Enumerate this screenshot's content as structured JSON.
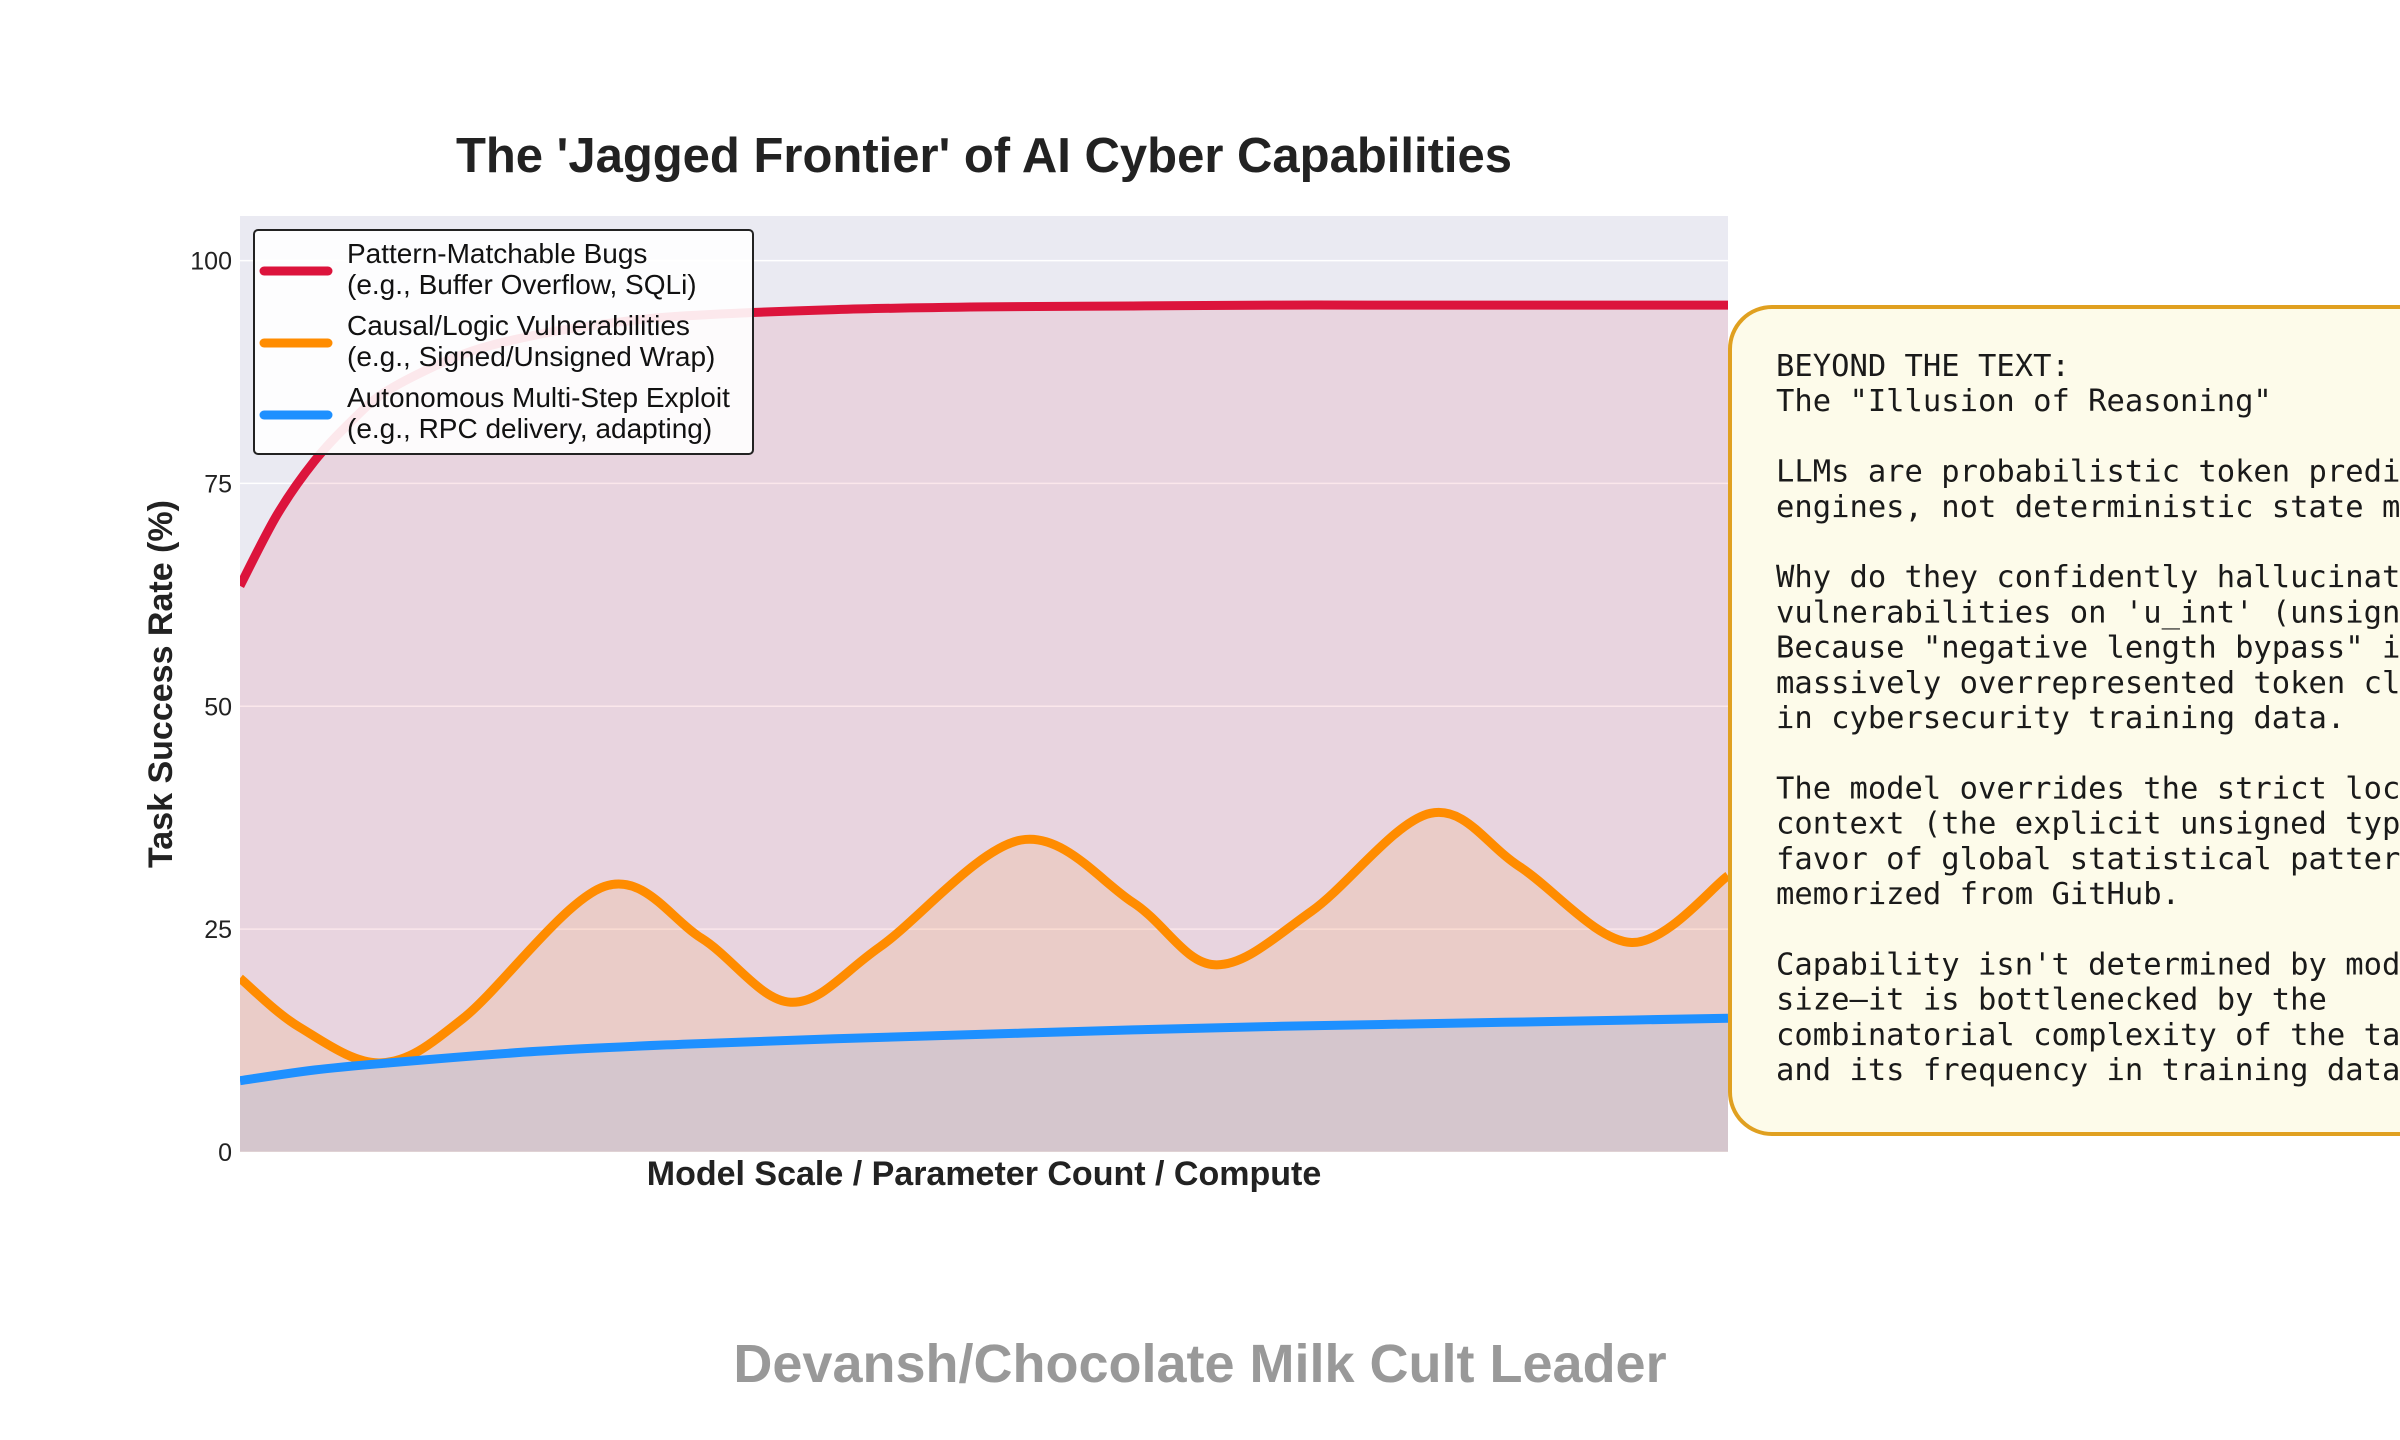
{
  "chart_data": {
    "type": "line",
    "title": "The 'Jagged Frontier' of AI Cyber Capabilities",
    "xlabel": "Model Scale / Parameter Count / Compute",
    "ylabel": "Task Success Rate (%)",
    "xlim": [
      0,
      10
    ],
    "ylim": [
      0,
      105
    ],
    "yticks": [
      0,
      25,
      50,
      75,
      100
    ],
    "grid": true,
    "legend_position": "top-left",
    "series": [
      {
        "name": "Pattern-Matchable Bugs",
        "legend_sublabel": "(e.g., Buffer Overflow, SQLi)",
        "color": "#dc143c",
        "fill": true,
        "x": [
          0,
          0.25,
          0.5,
          0.75,
          1,
          1.5,
          2,
          2.5,
          3,
          4,
          5,
          6,
          7,
          8,
          9,
          10
        ],
        "y": [
          63.5,
          71.5,
          77.5,
          82,
          85.5,
          89.5,
          91.7,
          93,
          93.8,
          94.5,
          94.8,
          94.9,
          95,
          95,
          95,
          95
        ]
      },
      {
        "name": "Causal/Logic Vulnerabilities",
        "legend_sublabel": "(e.g., Signed/Unsigned Wrap)",
        "color": "#ff8c00",
        "fill": true,
        "x": [
          0,
          0.4,
          0.95,
          1.5,
          2.45,
          3.1,
          3.7,
          4.3,
          5.25,
          6.0,
          6.55,
          7.2,
          8.0,
          8.6,
          9.35,
          10
        ],
        "y": [
          19.5,
          14,
          10,
          15,
          29.8,
          24,
          16.8,
          23,
          35,
          28,
          21,
          27,
          38,
          32,
          23.5,
          31
        ]
      },
      {
        "name": "Autonomous Multi-Step Exploit",
        "legend_sublabel": "(e.g., RPC delivery, adapting)",
        "color": "#1e90ff",
        "fill": true,
        "x": [
          0,
          0.5,
          1,
          2,
          3,
          4,
          5,
          6,
          7,
          8,
          9,
          10
        ],
        "y": [
          8,
          9.2,
          10,
          11.3,
          12.1,
          12.7,
          13.2,
          13.7,
          14.1,
          14.4,
          14.7,
          15
        ]
      }
    ]
  },
  "annotation": {
    "lines": [
      "BEYOND THE TEXT:",
      "The \"Illusion of Reasoning\"",
      "",
      "LLMs are probabilistic token predi",
      "engines, not deterministic state m",
      "",
      "Why do they confidently hallucinat",
      "vulnerabilities on 'u_int' (unsign",
      "Because \"negative length bypass\" i",
      "massively overrepresented token cl",
      "in cybersecurity training data.",
      "",
      "The model overrides the strict loc",
      "context (the explicit unsigned typ",
      "favor of global statistical patter",
      "memorized from GitHub.",
      "",
      "Capability isn't determined by mod",
      "size—it is bottlenecked by the",
      "combinatorial complexity of the ta",
      "and its frequency in training data"
    ],
    "border_color": "#e0a020",
    "background_color": "#fdfbea"
  },
  "watermark": "Devansh/Chocolate Milk Cult Leader",
  "colors": {
    "plot_background": "#eaeaf2",
    "grid": "#ffffff"
  }
}
